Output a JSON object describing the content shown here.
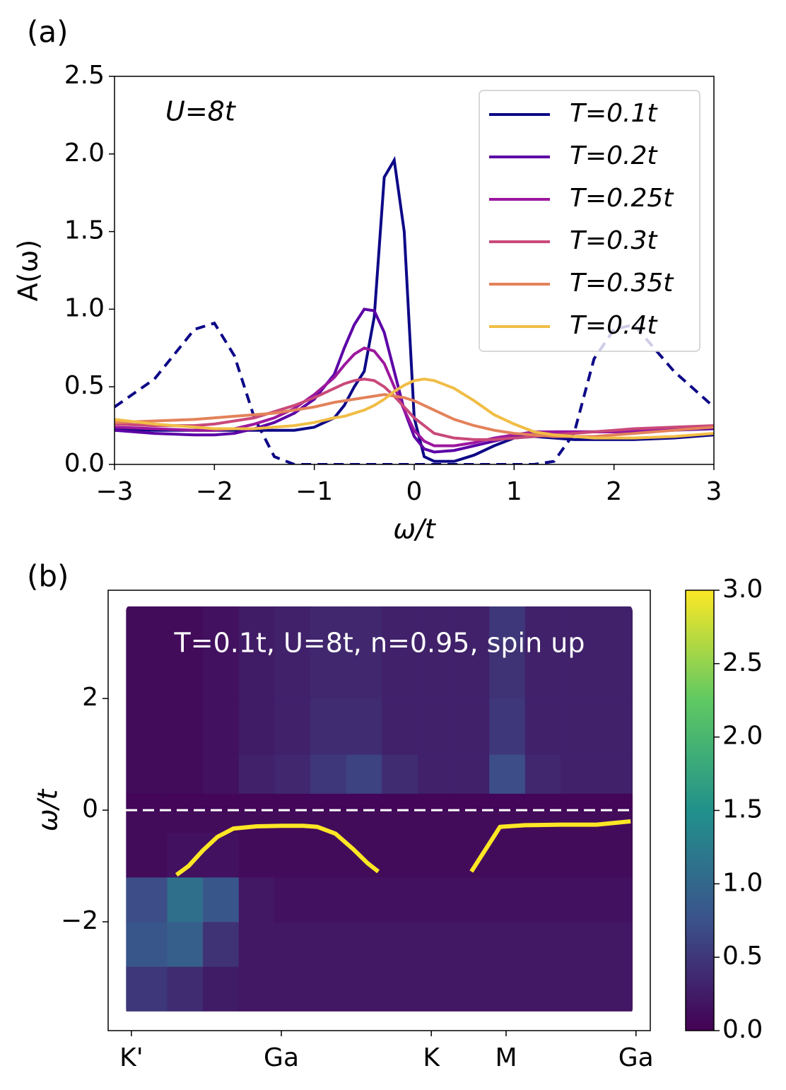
{
  "chart_data": [
    {
      "type": "line",
      "panel_label": "(a)",
      "annotation": "U=8t",
      "xlabel": "ω/t",
      "ylabel": "A(ω)",
      "x": [
        -3,
        -2.6,
        -2.2,
        -2.0,
        -1.8,
        -1.6,
        -1.4,
        -1.2,
        -1.0,
        -0.8,
        -0.7,
        -0.6,
        -0.5,
        -0.4,
        -0.3,
        -0.2,
        -0.1,
        0,
        0.1,
        0.2,
        0.4,
        0.6,
        0.8,
        1.0,
        1.2,
        1.4,
        1.6,
        1.8,
        2.0,
        2.2,
        2.6,
        3.0
      ],
      "series": [
        {
          "color": "#0d0887",
          "dash": true,
          "values": [
            0.37,
            0.55,
            0.87,
            0.91,
            0.7,
            0.3,
            0.05,
            0,
            0,
            0,
            0,
            0,
            0,
            0,
            0,
            0,
            0,
            0,
            0,
            0,
            0,
            0,
            0,
            0,
            0,
            0.02,
            0.2,
            0.68,
            0.87,
            0.9,
            0.6,
            0.37
          ]
        },
        {
          "name": "T=0.1t",
          "color": "#0d0887",
          "values": [
            0.23,
            0.22,
            0.22,
            0.22,
            0.22,
            0.22,
            0.22,
            0.22,
            0.24,
            0.3,
            0.38,
            0.5,
            0.6,
            0.95,
            1.85,
            1.96,
            1.5,
            0.3,
            0.05,
            0.02,
            0.02,
            0.06,
            0.12,
            0.17,
            0.18,
            0.17,
            0.16,
            0.16,
            0.16,
            0.16,
            0.17,
            0.19
          ]
        },
        {
          "name": "T=0.2t",
          "color": "#5c01a6",
          "values": [
            0.22,
            0.2,
            0.19,
            0.19,
            0.2,
            0.23,
            0.27,
            0.33,
            0.42,
            0.58,
            0.75,
            0.9,
            1.0,
            0.99,
            0.85,
            0.6,
            0.35,
            0.18,
            0.1,
            0.08,
            0.09,
            0.12,
            0.15,
            0.18,
            0.2,
            0.21,
            0.21,
            0.21,
            0.21,
            0.21,
            0.22,
            0.23
          ]
        },
        {
          "name": "T=0.25t",
          "color": "#9c179e",
          "values": [
            0.24,
            0.23,
            0.22,
            0.22,
            0.23,
            0.26,
            0.3,
            0.36,
            0.45,
            0.56,
            0.64,
            0.71,
            0.75,
            0.73,
            0.65,
            0.5,
            0.35,
            0.22,
            0.15,
            0.12,
            0.12,
            0.14,
            0.17,
            0.19,
            0.21,
            0.21,
            0.21,
            0.21,
            0.21,
            0.22,
            0.23,
            0.24
          ]
        },
        {
          "name": "T=0.3t",
          "color": "#c9497a",
          "values": [
            0.26,
            0.25,
            0.25,
            0.26,
            0.28,
            0.3,
            0.34,
            0.38,
            0.43,
            0.49,
            0.52,
            0.54,
            0.55,
            0.54,
            0.5,
            0.44,
            0.37,
            0.3,
            0.25,
            0.2,
            0.17,
            0.16,
            0.16,
            0.17,
            0.18,
            0.19,
            0.2,
            0.21,
            0.22,
            0.23,
            0.24,
            0.25
          ]
        },
        {
          "name": "T=0.35t",
          "color": "#e3825a",
          "values": [
            0.27,
            0.28,
            0.29,
            0.3,
            0.31,
            0.32,
            0.33,
            0.35,
            0.37,
            0.4,
            0.41,
            0.42,
            0.43,
            0.44,
            0.45,
            0.44,
            0.43,
            0.41,
            0.38,
            0.35,
            0.29,
            0.25,
            0.22,
            0.2,
            0.19,
            0.18,
            0.18,
            0.18,
            0.19,
            0.2,
            0.22,
            0.24
          ]
        },
        {
          "name": "T=0.4t",
          "color": "#f0bd45",
          "values": [
            0.29,
            0.26,
            0.24,
            0.23,
            0.23,
            0.23,
            0.24,
            0.25,
            0.27,
            0.3,
            0.31,
            0.33,
            0.35,
            0.38,
            0.42,
            0.47,
            0.51,
            0.54,
            0.55,
            0.54,
            0.49,
            0.41,
            0.32,
            0.26,
            0.21,
            0.19,
            0.18,
            0.17,
            0.17,
            0.17,
            0.18,
            0.2
          ]
        }
      ],
      "xlim": [
        -3,
        3
      ],
      "xticks": [
        {
          "value": -3,
          "label": "−3"
        },
        {
          "value": -2,
          "label": "−2"
        },
        {
          "value": -1,
          "label": "−1"
        },
        0,
        1,
        2,
        3
      ],
      "ylim": [
        0,
        2.5
      ],
      "yticks": [
        {
          "value": 0,
          "label": "0.0"
        },
        0.5,
        {
          "value": 1,
          "label": "1.0"
        },
        1.5,
        {
          "value": 2,
          "label": "2.0"
        },
        2.5
      ],
      "legend": "upper right"
    },
    {
      "type": "heatmap",
      "panel_label": "(b)",
      "title": "T=0.1t, U=8t, n=0.95, spin up",
      "ylabel": "ω/t",
      "colormap": "viridis",
      "x_edges": [
        -0.15,
        1,
        2,
        3,
        4,
        5,
        6,
        7,
        8,
        9,
        10,
        11,
        12,
        13,
        14.0
      ],
      "y_edges": [
        -3.6,
        -2.8,
        -2,
        -1.2,
        -0.4,
        0,
        0.3,
        1,
        2,
        3,
        3.65
      ],
      "z": [
        [
          0.5,
          0.4,
          0.25,
          0.2,
          0.2,
          0.2,
          0.2,
          0.2,
          0.2,
          0.2,
          0.2,
          0.2,
          0.2,
          0.2
        ],
        [
          0.8,
          0.9,
          0.45,
          0.2,
          0.2,
          0.2,
          0.2,
          0.2,
          0.2,
          0.2,
          0.2,
          0.2,
          0.2,
          0.2
        ],
        [
          0.7,
          1.1,
          0.8,
          0.2,
          0.15,
          0.15,
          0.15,
          0.15,
          0.15,
          0.15,
          0.15,
          0.15,
          0.15,
          0.15
        ],
        [
          0.1,
          0.15,
          0.15,
          0.1,
          0.1,
          0.1,
          0.1,
          0.1,
          0.1,
          0.1,
          0.1,
          0.1,
          0.1,
          0.1
        ],
        [
          0.1,
          0.1,
          0.1,
          0.1,
          0.1,
          0.1,
          0.1,
          0.1,
          0.1,
          0.1,
          0.1,
          0.1,
          0.1,
          0.1
        ],
        [
          0.05,
          0.05,
          0.05,
          0.05,
          0.05,
          0.05,
          0.05,
          0.05,
          0.05,
          0.05,
          0.05,
          0.05,
          0.05,
          0.05
        ],
        [
          0.1,
          0.1,
          0.15,
          0.3,
          0.35,
          0.5,
          0.6,
          0.4,
          0.3,
          0.3,
          0.7,
          0.35,
          0.3,
          0.3
        ],
        [
          0.1,
          0.1,
          0.15,
          0.25,
          0.3,
          0.4,
          0.4,
          0.3,
          0.3,
          0.3,
          0.5,
          0.3,
          0.3,
          0.3
        ],
        [
          0.1,
          0.1,
          0.15,
          0.25,
          0.3,
          0.35,
          0.35,
          0.3,
          0.3,
          0.3,
          0.45,
          0.3,
          0.3,
          0.3
        ],
        [
          0.1,
          0.1,
          0.15,
          0.25,
          0.3,
          0.35,
          0.35,
          0.3,
          0.3,
          0.3,
          0.5,
          0.3,
          0.3,
          0.3
        ]
      ],
      "band": {
        "color": "#fde725",
        "x": [
          1.26,
          1.6,
          2.0,
          2.4,
          2.85,
          3.5,
          4.2,
          4.8,
          5.2,
          5.7,
          6.2,
          6.6,
          6.9,
          8.2,
          9.5,
          9.8,
          10.1,
          10.3,
          11,
          12,
          13,
          13.95
        ],
        "values": [
          -1.16,
          -1.0,
          -0.72,
          -0.48,
          -0.33,
          -0.29,
          -0.28,
          -0.28,
          -0.3,
          -0.42,
          -0.7,
          -0.95,
          -1.1,
          null,
          -1.1,
          -0.8,
          -0.5,
          -0.3,
          -0.27,
          -0.26,
          -0.26,
          -0.2
        ]
      },
      "hline": {
        "y": 0,
        "color": "#ffffff",
        "dash": true
      },
      "xlim": [
        -0.65,
        14.5
      ],
      "xticks": [
        {
          "value": 0,
          "label": "K'"
        },
        {
          "value": 4.19,
          "label": "Ga"
        },
        {
          "value": 8.38,
          "label": "K"
        },
        {
          "value": 10.47,
          "label": "M"
        },
        {
          "value": 14.1,
          "label": "Ga"
        }
      ],
      "ylim": [
        -3.95,
        3.94
      ],
      "yticks": [
        {
          "value": -2,
          "label": "−2"
        },
        0,
        2
      ],
      "clim": [
        0,
        3
      ],
      "cticks": [
        {
          "value": 0,
          "label": "0.0"
        },
        0.5,
        {
          "value": 1,
          "label": "1.0"
        },
        1.5,
        {
          "value": 2,
          "label": "2.0"
        },
        2.5,
        {
          "value": 3,
          "label": "3.0"
        }
      ]
    }
  ]
}
